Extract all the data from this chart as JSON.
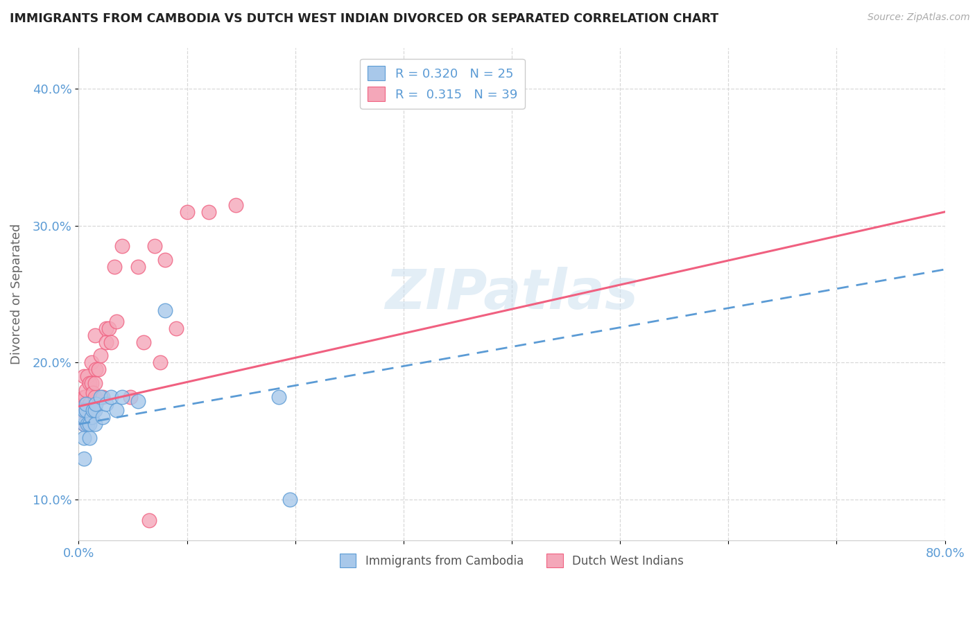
{
  "title": "IMMIGRANTS FROM CAMBODIA VS DUTCH WEST INDIAN DIVORCED OR SEPARATED CORRELATION CHART",
  "source": "Source: ZipAtlas.com",
  "ylabel": "Divorced or Separated",
  "xlim": [
    0.0,
    0.8
  ],
  "ylim": [
    0.07,
    0.43
  ],
  "yticks": [
    0.1,
    0.2,
    0.3,
    0.4
  ],
  "ytick_labels": [
    "10.0%",
    "20.0%",
    "30.0%",
    "40.0%"
  ],
  "xtick_vals": [
    0.0,
    0.1,
    0.2,
    0.3,
    0.4,
    0.5,
    0.6,
    0.7,
    0.8
  ],
  "xtick_labels": [
    "0.0%",
    "",
    "",
    "",
    "",
    "",
    "",
    "",
    "80.0%"
  ],
  "watermark": "ZIPatlas",
  "blue_color": "#a8c8ea",
  "pink_color": "#f4a7b9",
  "blue_line_color": "#5b9bd5",
  "pink_line_color": "#f06080",
  "legend_x_label": "Immigrants from Cambodia",
  "legend_pink_x_label": "Dutch West Indians",
  "background_color": "#ffffff",
  "grid_color": "#d8d8d8",
  "blue_scatter_x": [
    0.005,
    0.005,
    0.005,
    0.005,
    0.005,
    0.007,
    0.007,
    0.008,
    0.01,
    0.01,
    0.012,
    0.013,
    0.015,
    0.015,
    0.016,
    0.02,
    0.022,
    0.025,
    0.03,
    0.035,
    0.04,
    0.055,
    0.08,
    0.185,
    0.195
  ],
  "blue_scatter_y": [
    0.13,
    0.145,
    0.155,
    0.16,
    0.165,
    0.165,
    0.17,
    0.155,
    0.145,
    0.155,
    0.16,
    0.165,
    0.155,
    0.165,
    0.17,
    0.175,
    0.16,
    0.17,
    0.175,
    0.165,
    0.175,
    0.172,
    0.238,
    0.175,
    0.1
  ],
  "pink_scatter_x": [
    0.003,
    0.004,
    0.005,
    0.005,
    0.005,
    0.006,
    0.007,
    0.008,
    0.008,
    0.01,
    0.01,
    0.012,
    0.012,
    0.013,
    0.015,
    0.015,
    0.015,
    0.016,
    0.018,
    0.02,
    0.022,
    0.025,
    0.025,
    0.028,
    0.03,
    0.033,
    0.035,
    0.04,
    0.048,
    0.055,
    0.06,
    0.065,
    0.07,
    0.075,
    0.08,
    0.09,
    0.1,
    0.12,
    0.145
  ],
  "pink_scatter_y": [
    0.165,
    0.17,
    0.155,
    0.175,
    0.19,
    0.175,
    0.18,
    0.165,
    0.19,
    0.17,
    0.185,
    0.185,
    0.2,
    0.178,
    0.175,
    0.185,
    0.22,
    0.195,
    0.195,
    0.205,
    0.175,
    0.215,
    0.225,
    0.225,
    0.215,
    0.27,
    0.23,
    0.285,
    0.175,
    0.27,
    0.215,
    0.085,
    0.285,
    0.2,
    0.275,
    0.225,
    0.31,
    0.31,
    0.315
  ],
  "blue_line_x0": 0.0,
  "blue_line_y0": 0.155,
  "blue_line_x1": 0.8,
  "blue_line_y1": 0.268,
  "pink_line_x0": 0.0,
  "pink_line_y0": 0.168,
  "pink_line_x1": 0.8,
  "pink_line_y1": 0.31
}
